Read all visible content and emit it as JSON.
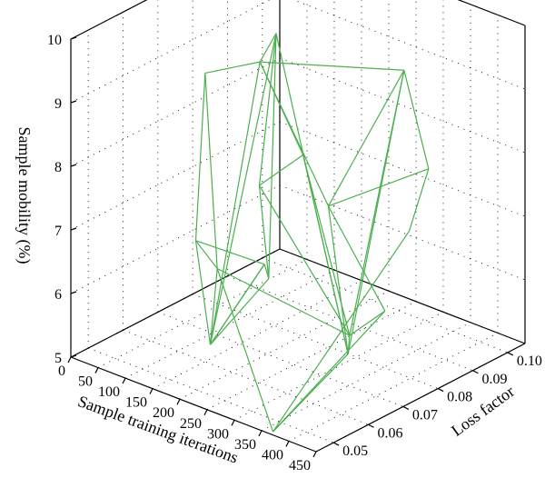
{
  "chart_data": {
    "type": "3d-wireframe",
    "title": "",
    "xlabel": "Sample training iterations",
    "ylabel": "Loss factor",
    "zlabel": "Sample mobility (%)",
    "x_ticks": [
      0,
      50,
      100,
      150,
      200,
      250,
      300,
      350,
      400,
      450
    ],
    "y_ticks": [
      "0.05",
      "0.06",
      "0.07",
      "0.08",
      "0.09",
      "0.10"
    ],
    "z_ticks": [
      5,
      6,
      7,
      8,
      9,
      10
    ],
    "xlim": [
      0,
      450
    ],
    "ylim": [
      0.045,
      0.105
    ],
    "zlim": [
      5,
      10
    ],
    "grid": true,
    "line_color": "#4caf50",
    "points": [
      {
        "id": "A",
        "x": 10,
        "y": 0.082,
        "z": 8.45
      },
      {
        "id": "B",
        "x": 45,
        "y": 0.08,
        "z": 5.55
      },
      {
        "id": "C",
        "x": 95,
        "y": 0.066,
        "z": 6.55
      },
      {
        "id": "D",
        "x": 160,
        "y": 0.06,
        "z": 5.3
      },
      {
        "id": "E",
        "x": 170,
        "y": 0.074,
        "z": 6.2
      },
      {
        "id": "F",
        "x": 165,
        "y": 0.076,
        "z": 5.9
      },
      {
        "id": "G",
        "x": 185,
        "y": 0.075,
        "z": 9.85
      },
      {
        "id": "H",
        "x": 200,
        "y": 0.068,
        "z": 9.65
      },
      {
        "id": "I",
        "x": 250,
        "y": 0.06,
        "z": 8.1
      },
      {
        "id": "J",
        "x": 260,
        "y": 0.071,
        "z": 8.3
      },
      {
        "id": "K",
        "x": 275,
        "y": 0.082,
        "z": 5.2
      },
      {
        "id": "L",
        "x": 390,
        "y": 0.042,
        "z": 5.2
      },
      {
        "id": "M",
        "x": 285,
        "y": 0.08,
        "z": 5.0
      },
      {
        "id": "N",
        "x": 300,
        "y": 0.072,
        "z": 7.6
      },
      {
        "id": "O",
        "x": 375,
        "y": 0.082,
        "z": 9.7
      },
      {
        "id": "P",
        "x": 420,
        "y": 0.082,
        "z": 8.3
      },
      {
        "id": "Q",
        "x": 410,
        "y": 0.078,
        "z": 7.4
      },
      {
        "id": "R",
        "x": 340,
        "y": 0.082,
        "z": 5.8
      }
    ],
    "edges": [
      [
        "A",
        "B"
      ],
      [
        "A",
        "H"
      ],
      [
        "A",
        "C"
      ],
      [
        "B",
        "C"
      ],
      [
        "B",
        "D"
      ],
      [
        "B",
        "K"
      ],
      [
        "C",
        "E"
      ],
      [
        "C",
        "D"
      ],
      [
        "D",
        "E"
      ],
      [
        "D",
        "F"
      ],
      [
        "D",
        "G"
      ],
      [
        "D",
        "H"
      ],
      [
        "E",
        "F"
      ],
      [
        "F",
        "G"
      ],
      [
        "F",
        "I"
      ],
      [
        "G",
        "H"
      ],
      [
        "G",
        "I"
      ],
      [
        "G",
        "M"
      ],
      [
        "H",
        "J"
      ],
      [
        "H",
        "O"
      ],
      [
        "H",
        "N"
      ],
      [
        "I",
        "J"
      ],
      [
        "I",
        "K"
      ],
      [
        "J",
        "K"
      ],
      [
        "J",
        "M"
      ],
      [
        "K",
        "M"
      ],
      [
        "K",
        "O"
      ],
      [
        "M",
        "O"
      ],
      [
        "M",
        "N"
      ],
      [
        "N",
        "O"
      ],
      [
        "N",
        "P"
      ],
      [
        "O",
        "P"
      ],
      [
        "P",
        "Q"
      ],
      [
        "Q",
        "L"
      ],
      [
        "L",
        "B"
      ],
      [
        "K",
        "R"
      ],
      [
        "L",
        "R"
      ],
      [
        "N",
        "R"
      ],
      [
        "M",
        "L"
      ],
      [
        "E",
        "D"
      ]
    ]
  }
}
